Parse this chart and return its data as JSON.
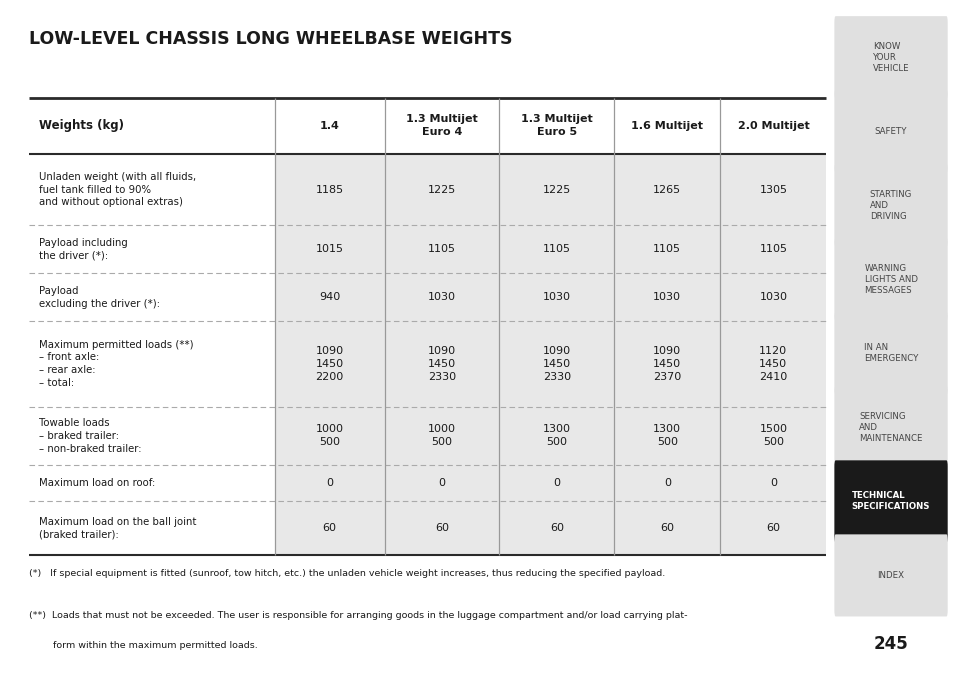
{
  "title": "LOW-LEVEL CHASSIS LONG WHEELBASE WEIGHTS",
  "col_headers": [
    "Weights (kg)",
    "1.4",
    "1.3 Multijet\nEuro 4",
    "1.3 Multijet\nEuro 5",
    "1.6 Multijet",
    "2.0 Multijet"
  ],
  "rows": [
    {
      "label": "Unladen weight (with all fluids,\nfuel tank filled to 90%\nand without optional extras)",
      "values": [
        "1185",
        "1225",
        "1225",
        "1265",
        "1305"
      ]
    },
    {
      "label": "Payload including\nthe driver (*):",
      "values": [
        "1015",
        "1105",
        "1105",
        "1105",
        "1105"
      ]
    },
    {
      "label": "Payload\nexcluding the driver (*):",
      "values": [
        "940",
        "1030",
        "1030",
        "1030",
        "1030"
      ]
    },
    {
      "label": "Maximum permitted loads (**)\n– front axle:\n– rear axle:\n– total:",
      "values": [
        "1090\n1450\n2200",
        "1090\n1450\n2330",
        "1090\n1450\n2330",
        "1090\n1450\n2370",
        "1120\n1450\n2410"
      ]
    },
    {
      "label": "Towable loads\n– braked trailer:\n– non-braked trailer:",
      "values": [
        "1000\n500",
        "1000\n500",
        "1300\n500",
        "1300\n500",
        "1500\n500"
      ]
    },
    {
      "label": "Maximum load on roof:",
      "values": [
        "0",
        "0",
        "0",
        "0",
        "0"
      ]
    },
    {
      "label": "Maximum load on the ball joint\n(braked trailer):",
      "values": [
        "60",
        "60",
        "60",
        "60",
        "60"
      ]
    }
  ],
  "footnote1": "(*)   If special equipment is fitted (sunroof, tow hitch, etc.) the unladen vehicle weight increases, thus reducing the specified payload.",
  "footnote2_line1": "(**)  Loads that must not be exceeded. The user is responsible for arranging goods in the luggage compartment and/or load carrying plat-",
  "footnote2_line2": "        form within the maximum permitted loads.",
  "sidebar_items": [
    {
      "text": "KNOW\nYOUR\nVEHICLE",
      "active": false
    },
    {
      "text": "SAFETY",
      "active": false
    },
    {
      "text": "STARTING\nAND\nDRIVING",
      "active": false
    },
    {
      "text": "WARNING\nLIGHTS AND\nMESSAGES",
      "active": false
    },
    {
      "text": "IN AN\nEMERGENCY",
      "active": false
    },
    {
      "text": "SERVICING\nAND\nMAINTENANCE",
      "active": false
    },
    {
      "text": "TECHNICAL\nSPECIFICATIONS",
      "active": true
    },
    {
      "text": "INDEX",
      "active": false
    }
  ],
  "page_number": "245",
  "bg_color": "#ffffff",
  "cell_bg_color": "#e8e8e8",
  "sidebar_bg": "#cccccc",
  "sidebar_item_bg": "#e0e0e0",
  "sidebar_active_bg": "#1a1a1a",
  "sidebar_active_fg": "#ffffff",
  "sidebar_inactive_fg": "#444444",
  "thick_line_color": "#2a2a2a",
  "thin_line_color": "#aaaaaa",
  "vsep_color": "#999999",
  "text_color": "#1a1a1a"
}
